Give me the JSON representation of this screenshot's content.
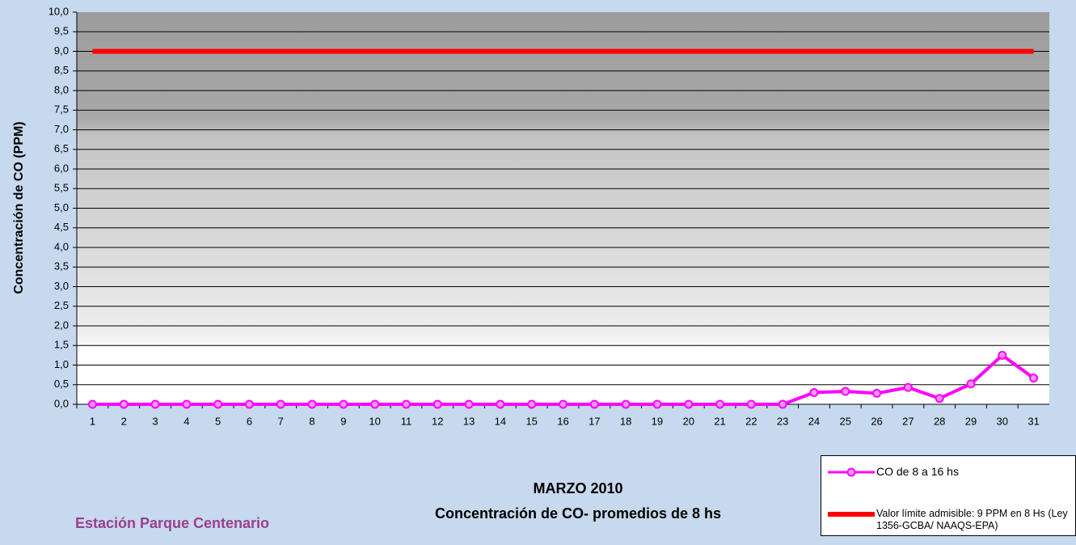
{
  "chart_data": {
    "type": "line",
    "title": "MARZO 2010",
    "subtitle": "Concentración de CO- promedios de 8 hs",
    "ylabel": "Concentración de CO (PPM)",
    "annotation": "Estación Parque Centenario",
    "categories": [
      "1",
      "2",
      "3",
      "4",
      "5",
      "6",
      "7",
      "8",
      "9",
      "10",
      "11",
      "12",
      "13",
      "14",
      "15",
      "16",
      "17",
      "18",
      "19",
      "20",
      "21",
      "22",
      "23",
      "24",
      "25",
      "26",
      "27",
      "28",
      "29",
      "30",
      "31"
    ],
    "series": [
      {
        "name": "CO de 8 a 16 hs",
        "color": "#ff00ff",
        "markers": true,
        "values": [
          0,
          0,
          0,
          0,
          0,
          0,
          0,
          0,
          0,
          0,
          0,
          0,
          0,
          0,
          0,
          0,
          0,
          0,
          0,
          0,
          0,
          0,
          0,
          0.3,
          0.33,
          0.28,
          0.43,
          0.15,
          0.52,
          1.25,
          0.67
        ]
      },
      {
        "name": "Valor límite admisible: 9 PPM en 8 Hs (Ley 1356-GCBA/ NAAQS-EPA)",
        "color": "#ff0000",
        "markers": false,
        "values": [
          9,
          9,
          9,
          9,
          9,
          9,
          9,
          9,
          9,
          9,
          9,
          9,
          9,
          9,
          9,
          9,
          9,
          9,
          9,
          9,
          9,
          9,
          9,
          9,
          9,
          9,
          9,
          9,
          9,
          9,
          9
        ]
      }
    ],
    "ylim": [
      0,
      10
    ],
    "yticks": [
      {
        "value": 0,
        "label": "0,0"
      },
      {
        "value": 0.5,
        "label": "0,5"
      },
      {
        "value": 1,
        "label": "1,0"
      },
      {
        "value": 1.5,
        "label": "1,5"
      },
      {
        "value": 2,
        "label": "2,0"
      },
      {
        "value": 2.5,
        "label": "2,5"
      },
      {
        "value": 3,
        "label": "3,0"
      },
      {
        "value": 3.5,
        "label": "3,5"
      },
      {
        "value": 4,
        "label": "4,0"
      },
      {
        "value": 4.5,
        "label": "4,5"
      },
      {
        "value": 5,
        "label": "5,0"
      },
      {
        "value": 5.5,
        "label": "5,5"
      },
      {
        "value": 6,
        "label": "6,0"
      },
      {
        "value": 6.5,
        "label": "6,5"
      },
      {
        "value": 7,
        "label": "7,0"
      },
      {
        "value": 7.5,
        "label": "7,5"
      },
      {
        "value": 8,
        "label": "8,0"
      },
      {
        "value": 8.5,
        "label": "8,5"
      },
      {
        "value": 9,
        "label": "9,0"
      },
      {
        "value": 9.5,
        "label": "9,5"
      },
      {
        "value": 10,
        "label": "10,0"
      }
    ],
    "grid": true
  }
}
